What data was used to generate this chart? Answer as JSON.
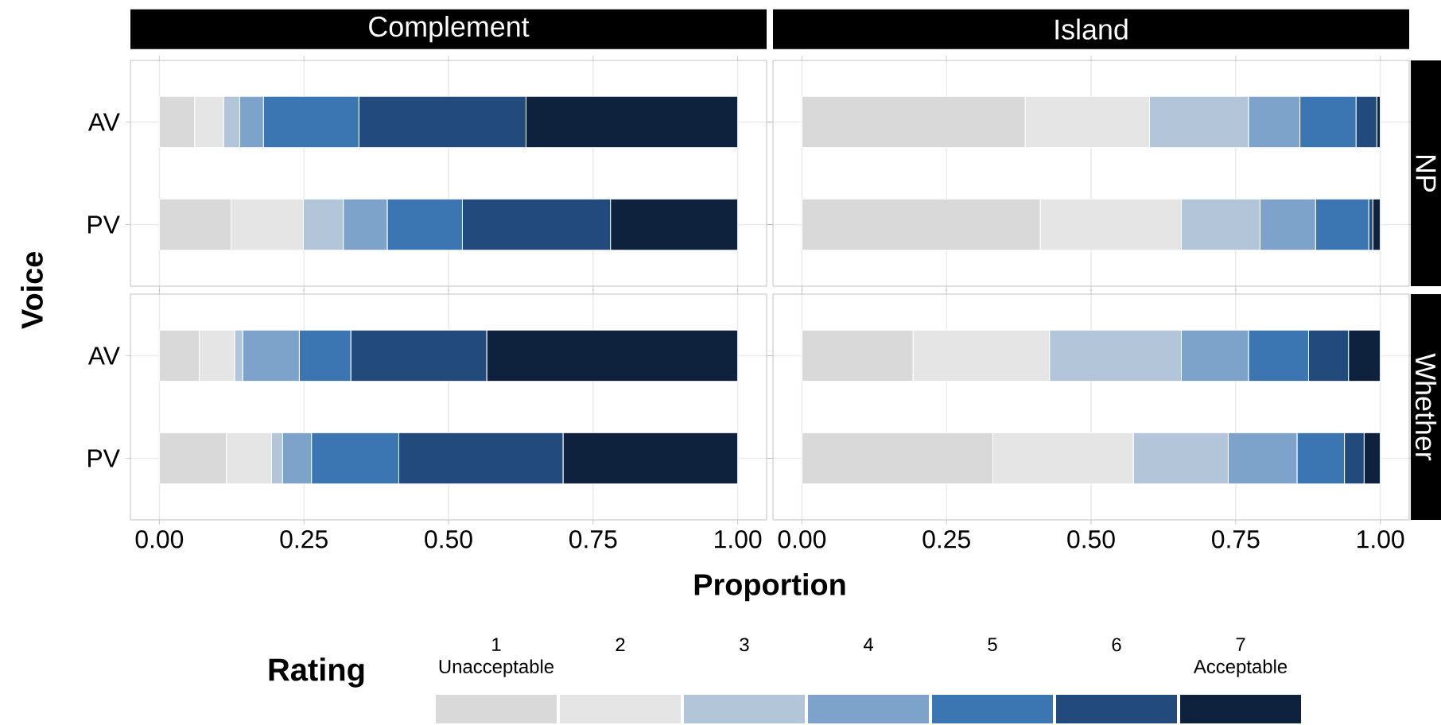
{
  "chart_data": [
    {
      "type": "bar",
      "orientation": "horizontal",
      "stacked": true,
      "title": "Complement",
      "ylabel": "Voice",
      "categories": [
        "AV",
        "PV"
      ],
      "xlim": [
        -0.05,
        1.05
      ],
      "xticks": [
        {
          "value": 0,
          "label": null
        },
        {
          "value": 0.25,
          "label": null
        },
        {
          "value": 0.5,
          "label": null
        },
        {
          "value": 0.75,
          "label": null
        },
        {
          "value": 1,
          "label": null
        }
      ],
      "grid": true,
      "tick_labels": "y",
      "legend": "bottom",
      "legend_title": "Rating",
      "series": [
        {
          "name": "1 Unacceptable",
          "color": "#d9d9d9",
          "values": [
            0.061,
            0.124
          ]
        },
        {
          "name": "2",
          "color": "#e5e5e5",
          "values": [
            0.05,
            0.125
          ]
        },
        {
          "name": "3",
          "color": "#b3c6d9",
          "values": [
            0.028,
            0.069
          ]
        },
        {
          "name": "4",
          "color": "#7ea3cb",
          "values": [
            0.041,
            0.076
          ]
        },
        {
          "name": "5",
          "color": "#3c76b2",
          "values": [
            0.165,
            0.13
          ]
        },
        {
          "name": "6",
          "color": "#224a7c",
          "values": [
            0.289,
            0.256
          ]
        },
        {
          "name": "7 Acceptable",
          "color": "#0e223d",
          "values": [
            0.366,
            0.22
          ]
        }
      ]
    },
    {
      "type": "bar",
      "orientation": "horizontal",
      "stacked": true,
      "title": "Island",
      "annotations": [
        "NP"
      ],
      "categories": [
        null,
        null
      ],
      "xlim": [
        -0.05,
        1.05
      ],
      "xticks": [
        {
          "value": 0,
          "label": null
        },
        {
          "value": 0.25,
          "label": null
        },
        {
          "value": 0.5,
          "label": null
        },
        {
          "value": 0.75,
          "label": null
        },
        {
          "value": 1,
          "label": null
        }
      ],
      "grid": true,
      "tick_labels": false,
      "series": [
        {
          "color": "#d9d9d9",
          "values": [
            0.386,
            0.412
          ]
        },
        {
          "color": "#e5e5e5",
          "values": [
            0.215,
            0.244
          ]
        },
        {
          "color": "#b3c6d9",
          "values": [
            0.171,
            0.136
          ]
        },
        {
          "color": "#7ea3cb",
          "values": [
            0.089,
            0.096
          ]
        },
        {
          "color": "#3c76b2",
          "values": [
            0.097,
            0.092
          ]
        },
        {
          "color": "#224a7c",
          "values": [
            0.036,
            0.007
          ]
        },
        {
          "color": "#0e223d",
          "values": [
            0.006,
            0.013
          ]
        }
      ]
    },
    {
      "type": "bar",
      "orientation": "horizontal",
      "stacked": true,
      "xlabel": "Proportion",
      "categories": [
        "AV",
        "PV"
      ],
      "xlim": [
        -0.05,
        1.05
      ],
      "xticks": [
        {
          "value": 0,
          "label": "0.00"
        },
        {
          "value": 0.25,
          "label": "0.25"
        },
        {
          "value": 0.5,
          "label": "0.50"
        },
        {
          "value": 0.75,
          "label": "0.75"
        },
        {
          "value": 1,
          "label": "1.00"
        }
      ],
      "grid": true,
      "series": [
        {
          "color": "#d9d9d9",
          "values": [
            0.069,
            0.116
          ]
        },
        {
          "color": "#e5e5e5",
          "values": [
            0.061,
            0.078
          ]
        },
        {
          "color": "#b3c6d9",
          "values": [
            0.014,
            0.019
          ]
        },
        {
          "color": "#7ea3cb",
          "values": [
            0.098,
            0.05
          ]
        },
        {
          "color": "#3c76b2",
          "values": [
            0.089,
            0.151
          ]
        },
        {
          "color": "#224a7c",
          "values": [
            0.235,
            0.284
          ]
        },
        {
          "color": "#0e223d",
          "values": [
            0.434,
            0.302
          ]
        }
      ]
    },
    {
      "type": "bar",
      "orientation": "horizontal",
      "stacked": true,
      "annotations": [
        "Whether"
      ],
      "categories": [
        null,
        null
      ],
      "xlim": [
        -0.05,
        1.05
      ],
      "xticks": [
        {
          "value": 0,
          "label": "0.00"
        },
        {
          "value": 0.25,
          "label": "0.25"
        },
        {
          "value": 0.5,
          "label": "0.50"
        },
        {
          "value": 0.75,
          "label": "0.75"
        },
        {
          "value": 1,
          "label": "1.00"
        }
      ],
      "grid": true,
      "tick_labels": "x",
      "series": [
        {
          "color": "#d9d9d9",
          "values": [
            0.192,
            0.33
          ]
        },
        {
          "color": "#e5e5e5",
          "values": [
            0.236,
            0.243
          ]
        },
        {
          "color": "#b3c6d9",
          "values": [
            0.228,
            0.164
          ]
        },
        {
          "color": "#7ea3cb",
          "values": [
            0.116,
            0.119
          ]
        },
        {
          "color": "#3c76b2",
          "values": [
            0.104,
            0.082
          ]
        },
        {
          "color": "#224a7c",
          "values": [
            0.069,
            0.034
          ]
        },
        {
          "color": "#0e223d",
          "values": [
            0.055,
            0.028
          ]
        }
      ]
    }
  ]
}
